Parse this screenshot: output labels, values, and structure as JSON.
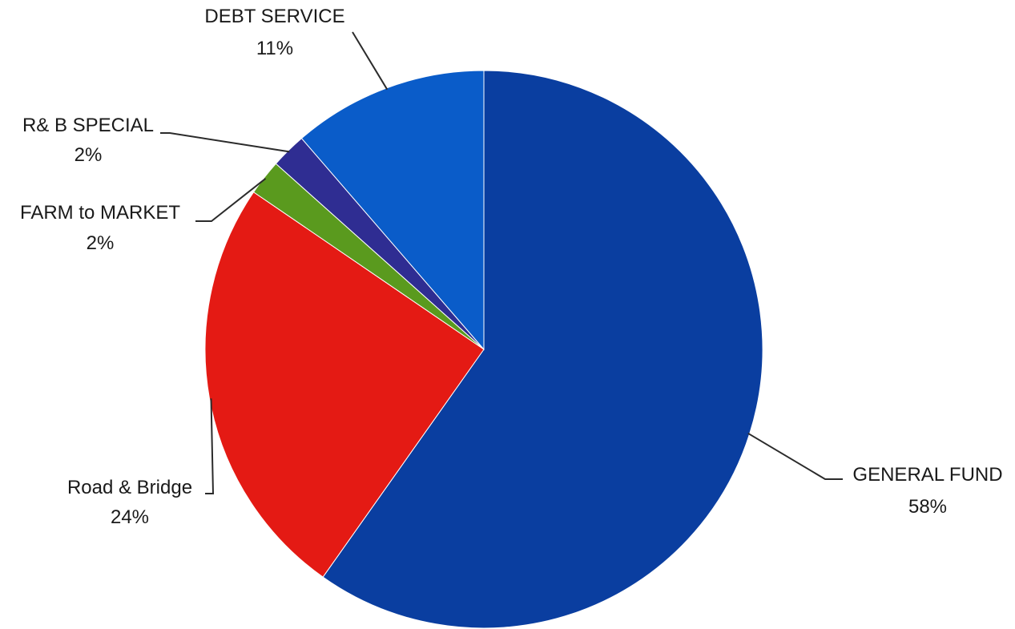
{
  "chart_data": {
    "type": "pie",
    "start_angle_deg": 0,
    "direction": "clockwise",
    "slices": [
      {
        "name": "GENERAL FUND",
        "label": "GENERAL FUND",
        "value": 58,
        "value_label": "58%",
        "color": "#0a3ea0"
      },
      {
        "name": "Road & Bridge",
        "label": "Road & Bridge",
        "value": 24,
        "value_label": "24%",
        "color": "#e41a14"
      },
      {
        "name": "FARM to MARKET",
        "label": "FARM to MARKET",
        "value": 2,
        "value_label": "2%",
        "color": "#5a9a1e"
      },
      {
        "name": "R& B SPECIAL",
        "label": "R& B SPECIAL",
        "value": 2,
        "value_label": "2%",
        "color": "#2f2d92"
      },
      {
        "name": "DEBT SERVICE",
        "label": "DEBT SERVICE",
        "value": 11,
        "value_label": "11%",
        "color": "#0a5cc9"
      }
    ],
    "legend": "none"
  }
}
